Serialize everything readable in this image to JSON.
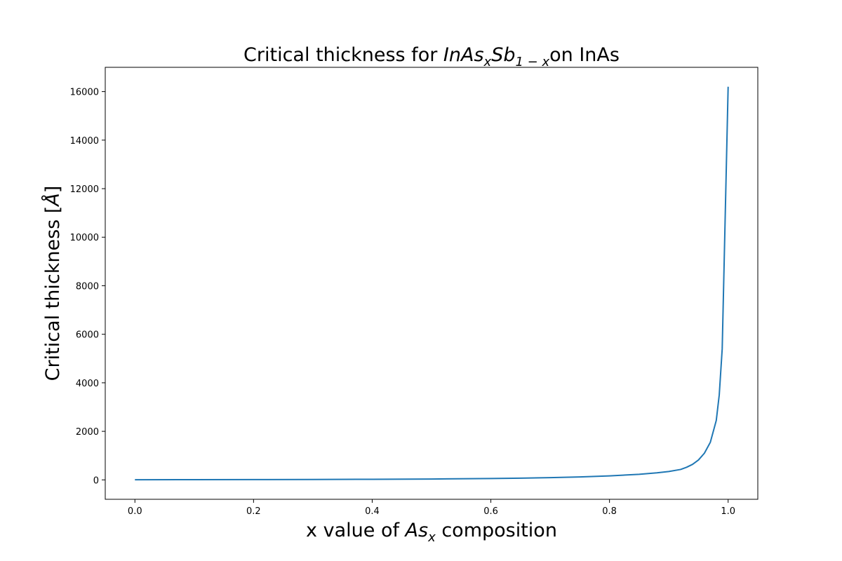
{
  "chart_data": {
    "type": "line",
    "title": {
      "prefix": "Critical thickness for ",
      "formula_main_1": "InAs",
      "formula_sub_1": "x",
      "formula_main_2": "Sb",
      "formula_sub_2": "1 − x",
      "suffix": "on InAs"
    },
    "xlabel": {
      "prefix": "x value of ",
      "formula_main": "As",
      "formula_sub": "x",
      "suffix": " composition"
    },
    "ylabel": {
      "text": "Critical thickness [",
      "symbol": "Å",
      "close": "]"
    },
    "xlim": [
      -0.05,
      1.05
    ],
    "ylim": [
      -800,
      17000
    ],
    "xticks": [
      0.0,
      0.2,
      0.4,
      0.6,
      0.8,
      1.0
    ],
    "xtick_labels": [
      "0.0",
      "0.2",
      "0.4",
      "0.6",
      "0.8",
      "1.0"
    ],
    "yticks": [
      0,
      2000,
      4000,
      6000,
      8000,
      10000,
      12000,
      14000,
      16000
    ],
    "ytick_labels": [
      "0",
      "2000",
      "4000",
      "6000",
      "8000",
      "10000",
      "12000",
      "14000",
      "16000"
    ],
    "grid": false,
    "series": [
      {
        "color": "#1f77b4",
        "x": [
          0.0,
          0.1,
          0.2,
          0.3,
          0.4,
          0.5,
          0.6,
          0.65,
          0.7,
          0.75,
          0.8,
          0.85,
          0.88,
          0.9,
          0.92,
          0.93,
          0.94,
          0.95,
          0.96,
          0.97,
          0.98,
          0.985,
          0.99,
          1.0
        ],
        "y": [
          5,
          9,
          13,
          18,
          25,
          35,
          55,
          70,
          92,
          120,
          165,
          230,
          290,
          345,
          430,
          520,
          640,
          820,
          1100,
          1550,
          2450,
          3500,
          5400,
          16200
        ]
      }
    ]
  }
}
